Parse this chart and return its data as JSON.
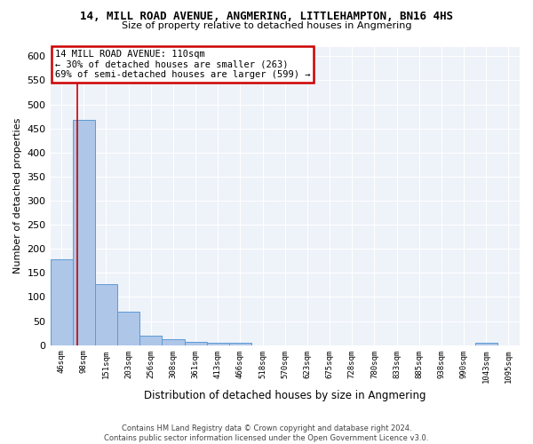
{
  "title": "14, MILL ROAD AVENUE, ANGMERING, LITTLEHAMPTON, BN16 4HS",
  "subtitle": "Size of property relative to detached houses in Angmering",
  "xlabel": "Distribution of detached houses by size in Angmering",
  "ylabel": "Number of detached properties",
  "bar_color": "#aec6e8",
  "bar_edge_color": "#5b9bd5",
  "background_color": "#eef2f9",
  "grid_color": "#ffffff",
  "bin_edges": [
    46,
    98,
    151,
    203,
    256,
    308,
    361,
    413,
    466,
    518,
    570,
    623,
    675,
    728,
    780,
    833,
    885,
    938,
    990,
    1043,
    1095
  ],
  "bin_labels": [
    "46sqm",
    "98sqm",
    "151sqm",
    "203sqm",
    "256sqm",
    "308sqm",
    "361sqm",
    "413sqm",
    "466sqm",
    "518sqm",
    "570sqm",
    "623sqm",
    "675sqm",
    "728sqm",
    "780sqm",
    "833sqm",
    "885sqm",
    "938sqm",
    "990sqm",
    "1043sqm",
    "1095sqm"
  ],
  "bar_heights": [
    178,
    468,
    126,
    70,
    20,
    12,
    7,
    5,
    5,
    0,
    0,
    0,
    0,
    0,
    0,
    0,
    0,
    0,
    0,
    5,
    0
  ],
  "ylim": [
    0,
    620
  ],
  "yticks": [
    0,
    50,
    100,
    150,
    200,
    250,
    300,
    350,
    400,
    450,
    500,
    550,
    600
  ],
  "property_size": 110,
  "property_label": "14 MILL ROAD AVENUE: 110sqm",
  "annotation_line1": "← 30% of detached houses are smaller (263)",
  "annotation_line2": "69% of semi-detached houses are larger (599) →",
  "annotation_box_color": "#ffffff",
  "annotation_box_edge": "#cc0000",
  "footer_line1": "Contains HM Land Registry data © Crown copyright and database right 2024.",
  "footer_line2": "Contains public sector information licensed under the Open Government Licence v3.0.",
  "property_line_color": "#cc0000"
}
